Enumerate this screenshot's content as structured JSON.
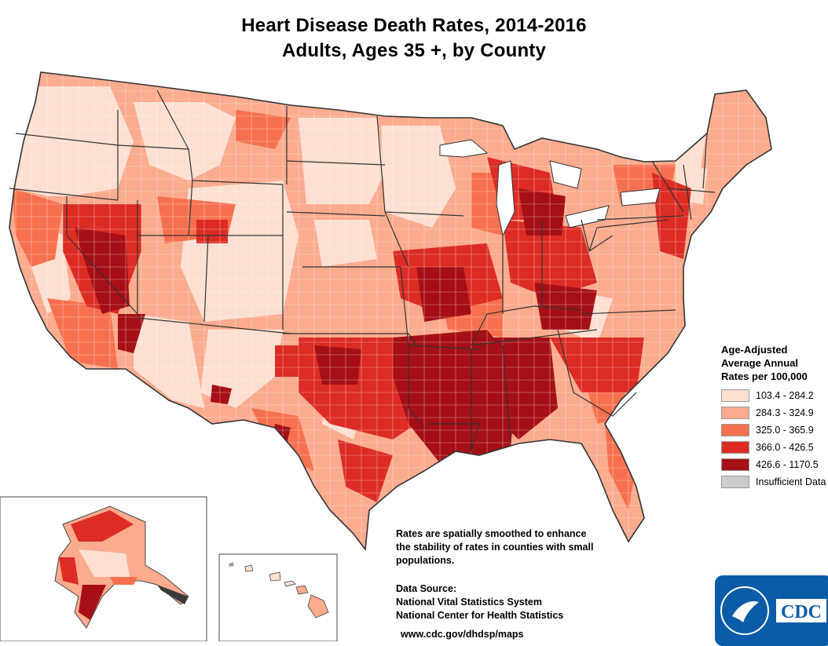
{
  "title": {
    "line1": "Heart Disease Death Rates, 2014-2016",
    "line2": "Adults, Ages 35 +, by County"
  },
  "legend": {
    "title_line1": "Age-Adjusted",
    "title_line2": "Average Annual",
    "title_line3": "Rates per 100,000",
    "items": [
      {
        "label": "103.4 - 284.2",
        "color": "#fde0d2"
      },
      {
        "label": "284.3 - 324.9",
        "color": "#fbab8e"
      },
      {
        "label": "325.0 - 365.9",
        "color": "#f6704f"
      },
      {
        "label": "366.0 - 426.5",
        "color": "#dc2c24"
      },
      {
        "label": "426.6 - 1170.5",
        "color": "#a50f15"
      },
      {
        "label": "Insufficient Data",
        "color": "#cccccc"
      }
    ]
  },
  "note": {
    "line1": "Rates are spatially smoothed to enhance",
    "line2": "the stability of rates in counties with small",
    "line3": "populations."
  },
  "source": {
    "heading": "Data Source:",
    "line1": "National Vital Statistics System",
    "line2": "National Center for Health Statistics"
  },
  "url": "www.cdc.gov/dhdsp/maps",
  "logo": {
    "text": "CDC",
    "color": "#0b5ca8"
  },
  "colors": {
    "state_border": "#333333",
    "county_border": "#ffffff"
  }
}
